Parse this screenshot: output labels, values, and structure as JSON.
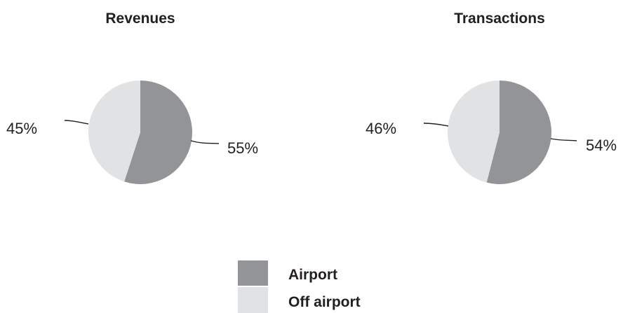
{
  "chart_data": [
    {
      "type": "pie",
      "title": "Revenues",
      "categories": [
        "Airport",
        "Off airport"
      ],
      "values": [
        55,
        45
      ],
      "labels": [
        "55%",
        "45%"
      ]
    },
    {
      "type": "pie",
      "title": "Transactions",
      "categories": [
        "Airport",
        "Off airport"
      ],
      "values": [
        54,
        46
      ],
      "labels": [
        "54%",
        "46%"
      ]
    }
  ],
  "legend": {
    "placement": "bottom-center",
    "items": [
      {
        "label": "Airport",
        "color": "#929497"
      },
      {
        "label": "Off airport",
        "color": "#e1e2e3"
      }
    ]
  },
  "colors": {
    "airport": "#929497",
    "off_airport": "#e1e2e3",
    "text": "#231f20"
  }
}
